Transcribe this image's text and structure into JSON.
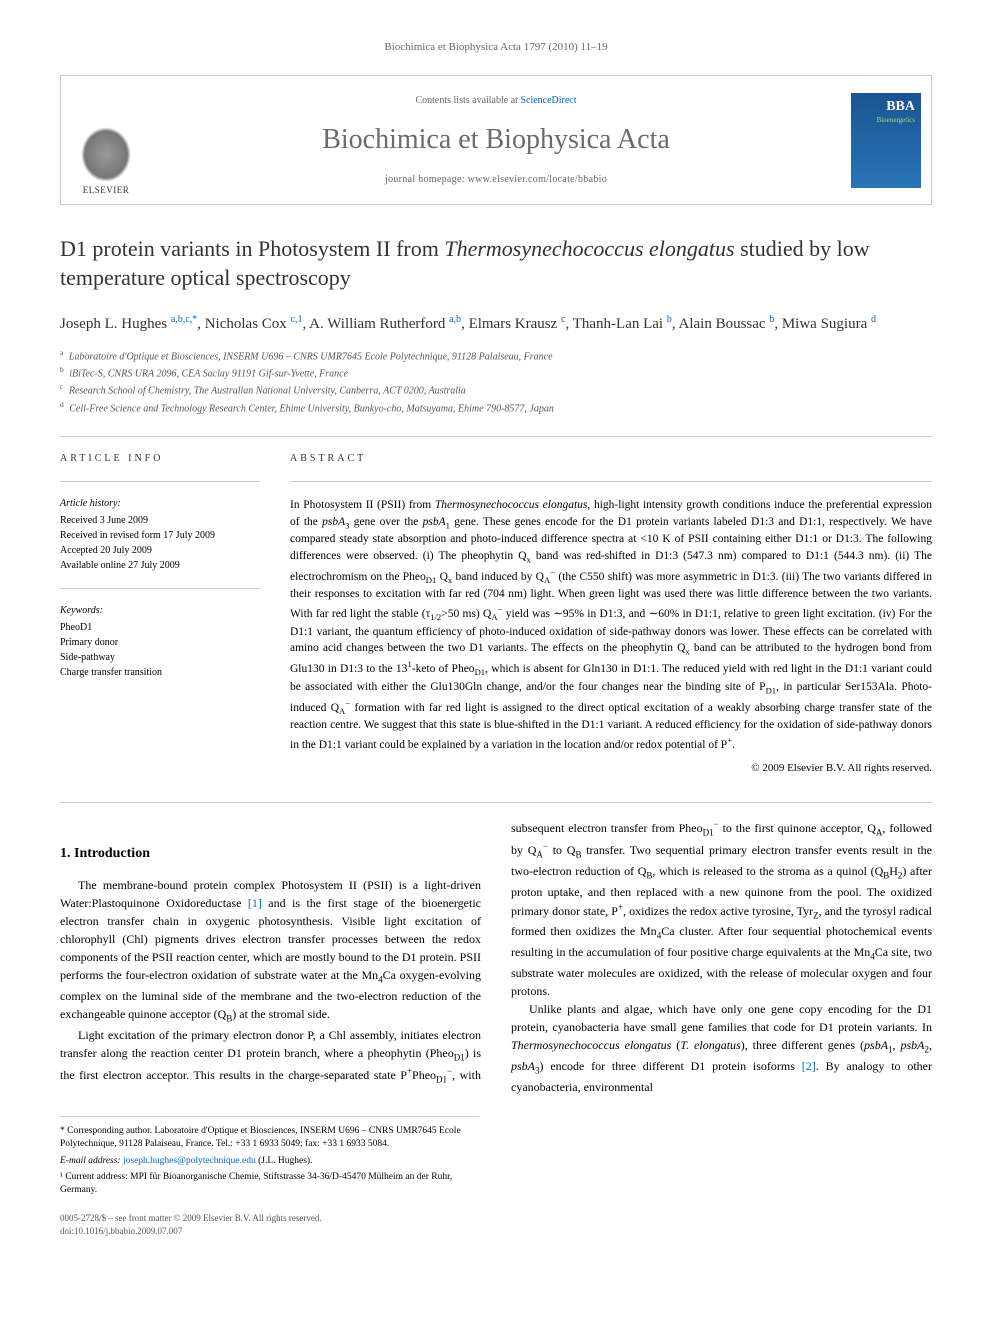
{
  "running_header": "Biochimica et Biophysica Acta 1797 (2010) 11–19",
  "banner": {
    "contents_prefix": "Contents lists available at ",
    "contents_link": "ScienceDirect",
    "journal_name": "Biochimica et Biophysica Acta",
    "homepage_prefix": "journal homepage: ",
    "homepage_url": "www.elsevier.com/locate/bbabio",
    "elsevier_label": "ELSEVIER",
    "bba_label": "BBA",
    "bba_sublabel": "Bioenergetics"
  },
  "title_part1": "D1 protein variants in Photosystem II from ",
  "title_italic": "Thermosynechococcus elongatus",
  "title_part2": " studied by low temperature optical spectroscopy",
  "authors_html": "Joseph L. Hughes <sup>a,b,c,*</sup>, Nicholas Cox <sup>c,1</sup>, A. William Rutherford <sup>a,b</sup>, Elmars Krausz <sup>c</sup>, Thanh-Lan Lai <sup>b</sup>, Alain Boussac <sup>b</sup>, Miwa Sugiura <sup>d</sup>",
  "affiliations": [
    {
      "sup": "a",
      "text": "Laboratoire d'Optique et Biosciences, INSERM U696 – CNRS UMR7645 Ecole Polytechnique, 91128 Palaiseau, France"
    },
    {
      "sup": "b",
      "text": "iBiTec-S, CNRS URA 2096, CEA Saclay 91191 Gif-sur-Yvette, France"
    },
    {
      "sup": "c",
      "text": "Research School of Chemistry, The Australian National University, Canberra, ACT 0200, Australia"
    },
    {
      "sup": "d",
      "text": "Cell-Free Science and Technology Research Center, Ehime University, Bunkyo-cho, Matsuyama, Ehime 790-8577, Japan"
    }
  ],
  "article_info": {
    "heading": "ARTICLE INFO",
    "history_label": "Article history:",
    "history": "Received 3 June 2009\nReceived in revised form 17 July 2009\nAccepted 20 July 2009\nAvailable online 27 July 2009",
    "keywords_label": "Keywords:",
    "keywords": "PheoD1\nPrimary donor\nSide-pathway\nCharge transfer transition"
  },
  "abstract": {
    "heading": "ABSTRACT",
    "text": "In Photosystem II (PSII) from <em>Thermosynechococcus elongatus</em>, high-light intensity growth conditions induce the preferential expression of the <em>psbA</em><sub>3</sub> gene over the <em>psbA</em><sub>1</sub> gene. These genes encode for the D1 protein variants labeled D1:3 and D1:1, respectively. We have compared steady state absorption and photo-induced difference spectra at <10 K of PSII containing either D1:1 or D1:3. The following differences were observed. (i) The pheophytin Q<sub>x</sub> band was red-shifted in D1:3 (547.3 nm) compared to D1:1 (544.3 nm). (ii) The electrochromism on the Pheo<sub>D1</sub> Q<sub>x</sub> band induced by Q<sub>A</sub><sup>−</sup> (the C550 shift) was more asymmetric in D1:3. (iii) The two variants differed in their responses to excitation with far red (704 nm) light. When green light was used there was little difference between the two variants. With far red light the stable (τ<sub>1/2</sub>>50 ms) Q<sub>A</sub><sup>−</sup> yield was ∼95% in D1:3, and ∼60% in D1:1, relative to green light excitation. (iv) For the D1:1 variant, the quantum efficiency of photo-induced oxidation of side-pathway donors was lower. These effects can be correlated with amino acid changes between the two D1 variants. The effects on the pheophytin Q<sub>x</sub> band can be attributed to the hydrogen bond from Glu130 in D1:3 to the 13<sup>1</sup>-keto of Pheo<sub>D1</sub>, which is absent for Gln130 in D1:1. The reduced yield with red light in the D1:1 variant could be associated with either the Glu130Gln change, and/or the four changes near the binding site of P<sub>D1</sub>, in particular Ser153Ala. Photo-induced Q<sub>A</sub><sup>−</sup> formation with far red light is assigned to the direct optical excitation of a weakly absorbing charge transfer state of the reaction centre. We suggest that this state is blue-shifted in the D1:1 variant. A reduced efficiency for the oxidation of side-pathway donors in the D1:1 variant could be explained by a variation in the location and/or redox potential of P<sup>+</sup>.",
    "copyright": "© 2009 Elsevier B.V. All rights reserved."
  },
  "body": {
    "section1_heading": "1. Introduction",
    "para1": "The membrane-bound protein complex Photosystem II (PSII) is a light-driven Water:Plastoquinone Oxidoreductase <span class=\"ref-link\">[1]</span> and is the first stage of the bioenergetic electron transfer chain in oxygenic photosynthesis. Visible light excitation of chlorophyll (Chl) pigments drives electron transfer processes between the redox components of the PSII reaction center, which are mostly bound to the D1 protein. PSII performs the four-electron oxidation of substrate water at the Mn<sub>4</sub>Ca oxygen-evolving complex on the luminal side of the membrane and the two-electron reduction of the exchangeable quinone acceptor (Q<sub>B</sub>) at the stromal side.",
    "para2": "Light excitation of the primary electron donor P, a Chl assembly, initiates electron transfer along the reaction center D1 protein branch, where a pheophytin (Pheo<sub>D1</sub>) is the first electron acceptor. This results in the charge-separated state P<sup>+</sup>Pheo<sub>D1</sub><sup>−</sup>, with subsequent electron transfer from Pheo<sub>D1</sub><sup>−</sup> to the first quinone acceptor, Q<sub>A</sub>, followed by Q<sub>A</sub><sup>−</sup> to Q<sub>B</sub> transfer. Two sequential primary electron transfer events result in the two-electron reduction of Q<sub>B</sub>, which is released to the stroma as a quinol (Q<sub>B</sub>H<sub>2</sub>) after proton uptake, and then replaced with a new quinone from the pool. The oxidized primary donor state, P<sup>+</sup>, oxidizes the redox active tyrosine, Tyr<sub>Z</sub>, and the tyrosyl radical formed then oxidizes the Mn<sub>4</sub>Ca cluster. After four sequential photochemical events resulting in the accumulation of four positive charge equivalents at the Mn<sub>4</sub>Ca site, two substrate water molecules are oxidized, with the release of molecular oxygen and four protons.",
    "para3": "Unlike plants and algae, which have only one gene copy encoding for the D1 protein, cyanobacteria have small gene families that code for D1 protein variants. In <em>Thermosynechococcus elongatus</em> (<em>T. elongatus</em>), three different genes (<em>psbA</em><sub>1</sub>, <em>psbA</em><sub>2</sub>, <em>psbA</em><sub>3</sub>) encode for three different D1 protein isoforms <span class=\"ref-link\">[2]</span>. By analogy to other cyanobacteria, environmental"
  },
  "footnotes": {
    "corr": "* Corresponding author. Laboratoire d'Optique et Biosciences, INSERM U696 – CNRS UMR7645 Ecole Polytechnique, 91128 Palaiseau, France. Tel.: +33 1 6933 5049; fax: +33 1 6933 5084.",
    "email_label": "E-mail address:",
    "email": "joseph.hughes@polytechnique.edu",
    "email_suffix": "(J.L. Hughes).",
    "note1": "¹ Current address: MPI für Bioanorganische Chemie, Stiftstrasse 34-36/D-45470 Mülheim an der Ruhr, Germany."
  },
  "bottom": {
    "line1": "0005-2728/$ – see front matter © 2009 Elsevier B.V. All rights reserved.",
    "line2": "doi:10.1016/j.bbabio.2009.07.007"
  }
}
